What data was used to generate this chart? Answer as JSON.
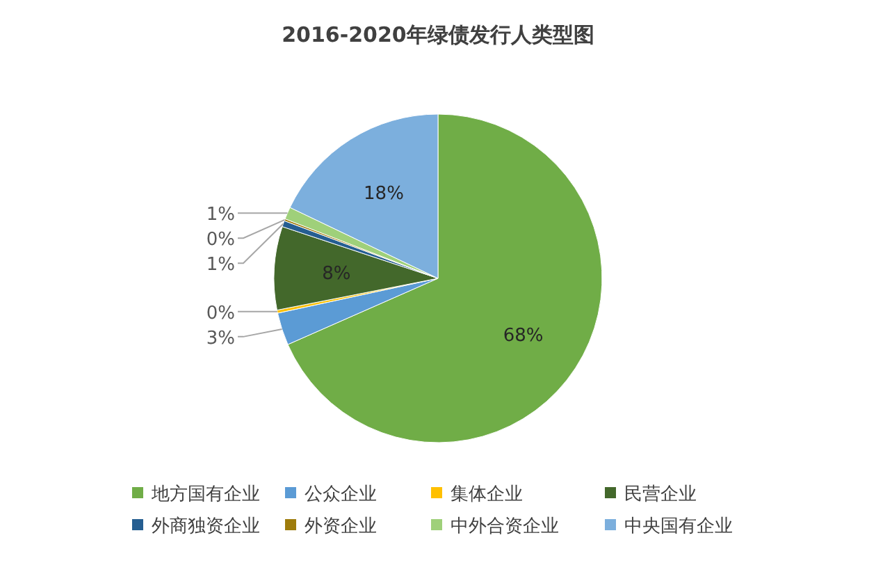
{
  "chart_data": {
    "type": "pie",
    "title": "2016-2020年绿债发行人类型图",
    "categories": [
      "地方国有企业",
      "公众企业",
      "集体企业",
      "民营企业",
      "外商独资企业",
      "外资企业",
      "中外合资企业",
      "中央国有企业"
    ],
    "values": [
      68.4,
      3.2,
      0.3,
      8.2,
      0.6,
      0.2,
      1.2,
      17.9
    ],
    "value_labels": [
      "68%",
      "3%",
      "0%",
      "8%",
      "1%",
      "0%",
      "1%",
      "18%"
    ],
    "colors": [
      "#70ad47",
      "#5b9bd5",
      "#ffc000",
      "#43682b",
      "#255e91",
      "#9e7c0c",
      "#9fd07a",
      "#7cafdd"
    ],
    "legend": "bottom"
  }
}
